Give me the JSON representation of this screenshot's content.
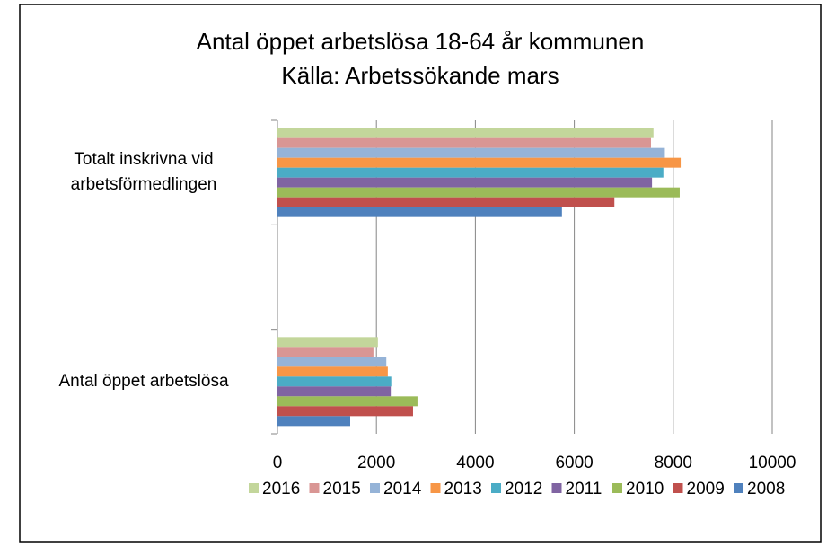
{
  "chart_data": {
    "type": "hbar",
    "title": "Antal öppet arbetslösa 18-64 år kommunen",
    "subtitle": "Källa: Arbetssökande mars",
    "categories": [
      "Antal öppet arbetslösa",
      null,
      "Totalt inskrivna vid arbetsförmedlingen"
    ],
    "series": [
      {
        "name": "2016",
        "color": "#c3d69b",
        "values": [
          2030,
          null,
          7600
        ]
      },
      {
        "name": "2015",
        "color": "#d99694",
        "values": [
          1940,
          null,
          7550
        ]
      },
      {
        "name": "2014",
        "color": "#95b3d7",
        "values": [
          2200,
          null,
          7830
        ]
      },
      {
        "name": "2013",
        "color": "#f79646",
        "values": [
          2230,
          null,
          8150
        ]
      },
      {
        "name": "2012",
        "color": "#4bacc6",
        "values": [
          2300,
          null,
          7800
        ]
      },
      {
        "name": "2011",
        "color": "#8064a2",
        "values": [
          2290,
          null,
          7570
        ]
      },
      {
        "name": "2010",
        "color": "#9bbb59",
        "values": [
          2830,
          null,
          8130
        ]
      },
      {
        "name": "2009",
        "color": "#c0504d",
        "values": [
          2740,
          null,
          6810
        ]
      },
      {
        "name": "2008",
        "color": "#4f81bd",
        "values": [
          1470,
          null,
          5750
        ]
      }
    ],
    "xlim": [
      0,
      10000
    ],
    "xticks": [
      0,
      2000,
      4000,
      6000,
      8000,
      10000
    ],
    "grid": true
  }
}
